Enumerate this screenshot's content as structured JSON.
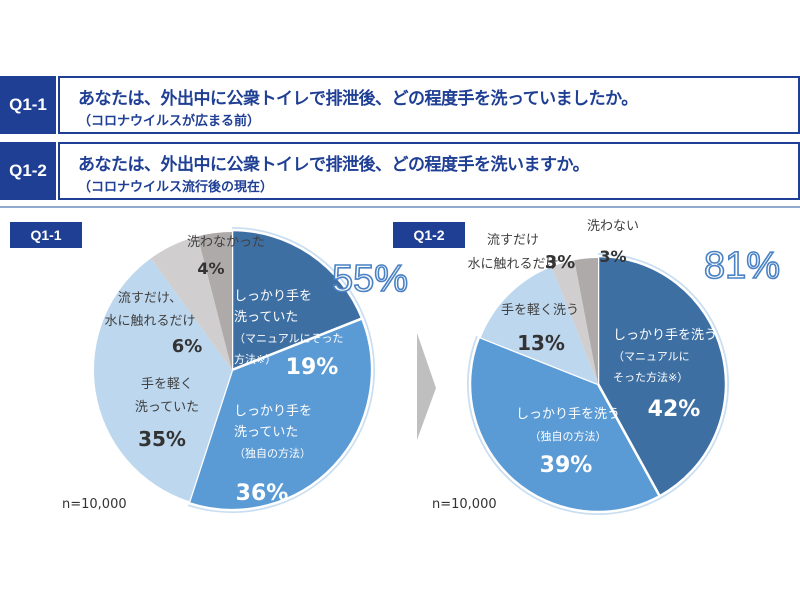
{
  "questions": [
    {
      "tag": "Q1-1",
      "text": "あなたは、外出中に公衆トイレで排泄後、どの程度手を洗っていましたか。",
      "sub": "（コロナウイルスが広まる前）"
    },
    {
      "tag": "Q1-2",
      "text": "あなたは、外出中に公衆トイレで排泄後、どの程度手を洗いますか。",
      "sub": "（コロナウイルス流行後の現在）"
    }
  ],
  "colors": {
    "brand": "#1f3f94",
    "manual": "#3e6fa3",
    "own": "#5b9bd5",
    "light": "#bdd7ee",
    "rinse": "#d0cece",
    "none": "#aeaaaa",
    "highlight": "#9dc3e6"
  },
  "chart_data": [
    {
      "type": "pie",
      "title": "Q1-1",
      "sample": "n=10,000",
      "highlight_total": "55%",
      "slices": [
        {
          "key": "manual",
          "label_lines": [
            "しっかり手を",
            "洗っていた",
            "（マニュアルにそった",
            "方法※）"
          ],
          "value": 19,
          "pct": "19%"
        },
        {
          "key": "own",
          "label_lines": [
            "しっかり手を",
            "洗っていた",
            "（独自の方法）"
          ],
          "value": 36,
          "pct": "36%"
        },
        {
          "key": "light",
          "label_lines": [
            "手を軽く",
            "洗っていた"
          ],
          "value": 35,
          "pct": "35%"
        },
        {
          "key": "rinse",
          "label_lines": [
            "流すだけ、",
            "水に触れるだけ"
          ],
          "value": 6,
          "pct": "6%"
        },
        {
          "key": "none",
          "label_lines": [
            "洗わなかった"
          ],
          "value": 4,
          "pct": "4%"
        }
      ]
    },
    {
      "type": "pie",
      "title": "Q1-2",
      "sample": "n=10,000",
      "highlight_total": "81%",
      "slices": [
        {
          "key": "manual",
          "label_lines": [
            "しっかり手を洗う",
            "（マニュアルに",
            "そった方法※）"
          ],
          "value": 42,
          "pct": "42%"
        },
        {
          "key": "own",
          "label_lines": [
            "しっかり手を洗う",
            "（独自の方法）"
          ],
          "value": 39,
          "pct": "39%"
        },
        {
          "key": "light",
          "label_lines": [
            "手を軽く洗う"
          ],
          "value": 13,
          "pct": "13%"
        },
        {
          "key": "rinse",
          "label_lines": [
            "流すだけ",
            "水に触れるだけ"
          ],
          "value": 3,
          "pct": "3%"
        },
        {
          "key": "none",
          "label_lines": [
            "洗わない"
          ],
          "value": 3,
          "pct": "3%"
        }
      ]
    }
  ]
}
